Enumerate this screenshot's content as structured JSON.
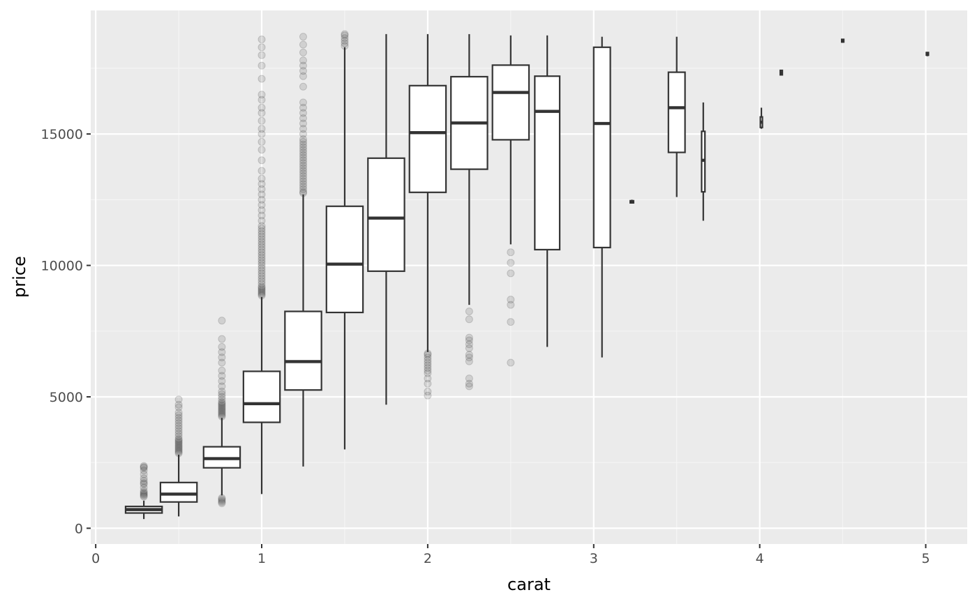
{
  "chart_data": {
    "type": "boxplot",
    "title": "",
    "xlabel": "carat",
    "ylabel": "price",
    "xlim": [
      -0.03,
      5.25
    ],
    "ylim": [
      -600,
      19700
    ],
    "x_ticks": [
      0,
      1,
      2,
      3,
      4,
      5
    ],
    "x_tick_labels": [
      "0",
      "1",
      "2",
      "3",
      "4",
      "5"
    ],
    "y_ticks": [
      0,
      5000,
      10000,
      15000
    ],
    "y_tick_labels": [
      "0",
      "5000",
      "10000",
      "15000"
    ],
    "grid": true,
    "colors": {
      "panel_background": "#ebebeb",
      "grid_major": "#ffffff",
      "grid_minor": "#f5f5f5",
      "box_outline": "#333333",
      "box_fill": "#ffffff",
      "outlier": "#333333"
    },
    "boxes": [
      {
        "x": 0.29,
        "width": 0.22,
        "lower": 350,
        "q1": 580,
        "median": 710,
        "q3": 830,
        "upper": 1050,
        "outliers": [
          1200,
          1240,
          1280,
          1320,
          1360,
          1420,
          1550,
          1680,
          1720,
          1800,
          1900,
          2050,
          2200,
          2300,
          2330,
          2370
        ]
      },
      {
        "x": 0.5,
        "width": 0.22,
        "lower": 450,
        "q1": 1000,
        "median": 1300,
        "q3": 1740,
        "upper": 2800,
        "outliers": [
          2850,
          2900,
          2950,
          3000,
          3050,
          3100,
          3150,
          3200,
          3250,
          3300,
          3350,
          3400,
          3500,
          3600,
          3700,
          3800,
          3900,
          4000,
          4100,
          4200,
          4300,
          4400,
          4600,
          4700,
          4900
        ]
      },
      {
        "x": 0.76,
        "width": 0.22,
        "lower": 1250,
        "q1": 2300,
        "median": 2650,
        "q3": 3100,
        "upper": 4200,
        "outliers": [
          950,
          1000,
          1050,
          1100,
          1150,
          4250,
          4300,
          4350,
          4400,
          4450,
          4500,
          4550,
          4600,
          4650,
          4700,
          4750,
          4800,
          4900,
          5000,
          5100,
          5200,
          5400,
          5600,
          5800,
          6000,
          6300,
          6500,
          6700,
          6900,
          7200,
          7900
        ]
      },
      {
        "x": 1.0,
        "width": 0.22,
        "lower": 1300,
        "q1": 4030,
        "median": 4740,
        "q3": 5970,
        "upper": 8800,
        "outliers": [
          8850,
          8900,
          8950,
          9000,
          9050,
          9100,
          9150,
          9200,
          9300,
          9400,
          9500,
          9600,
          9700,
          9800,
          9900,
          10000,
          10100,
          10200,
          10300,
          10400,
          10500,
          10600,
          10700,
          10800,
          10900,
          11000,
          11100,
          11200,
          11300,
          11400,
          11500,
          11700,
          11900,
          12100,
          12300,
          12500,
          12700,
          12900,
          13100,
          13300,
          13600,
          14000,
          14400,
          14700,
          15000,
          15200,
          15500,
          15800,
          16000,
          16300,
          16500,
          17100,
          17600,
          18000,
          18300,
          18600
        ]
      },
      {
        "x": 1.25,
        "width": 0.22,
        "lower": 2350,
        "q1": 5260,
        "median": 6340,
        "q3": 8250,
        "upper": 12700,
        "outliers": [
          12750,
          12800,
          12900,
          13000,
          13100,
          13200,
          13300,
          13400,
          13500,
          13600,
          13700,
          13800,
          13900,
          14000,
          14100,
          14200,
          14300,
          14400,
          14500,
          14600,
          14700,
          14800,
          15000,
          15200,
          15400,
          15600,
          15800,
          16000,
          16200,
          16800,
          17200,
          17400,
          17600,
          17800,
          18100,
          18400,
          18700
        ]
      },
      {
        "x": 1.5,
        "width": 0.22,
        "lower": 3000,
        "q1": 8210,
        "median": 10050,
        "q3": 12250,
        "upper": 18300,
        "outliers": [
          18350,
          18450,
          18550,
          18650,
          18750,
          18800
        ]
      },
      {
        "x": 1.75,
        "width": 0.22,
        "lower": 4700,
        "q1": 9780,
        "median": 11800,
        "q3": 14080,
        "upper": 18800,
        "outliers": []
      },
      {
        "x": 2.0,
        "width": 0.22,
        "lower": 6700,
        "q1": 12780,
        "median": 15050,
        "q3": 16840,
        "upper": 18800,
        "outliers": [
          5050,
          5200,
          5500,
          5700,
          5900,
          6000,
          6100,
          6200,
          6300,
          6400,
          6500,
          6600,
          6650
        ]
      },
      {
        "x": 2.25,
        "width": 0.22,
        "lower": 8500,
        "q1": 13660,
        "median": 15420,
        "q3": 17180,
        "upper": 18800,
        "outliers": [
          5400,
          5500,
          5700,
          6350,
          6500,
          6600,
          6850,
          7000,
          7150,
          7250,
          7950,
          8250
        ]
      },
      {
        "x": 2.5,
        "width": 0.22,
        "lower": 10800,
        "q1": 14780,
        "median": 16580,
        "q3": 17620,
        "upper": 18750,
        "outliers": [
          6300,
          7850,
          8500,
          8700,
          9700,
          10100,
          10500
        ]
      },
      {
        "x": 2.72,
        "width": 0.15,
        "lower": 6900,
        "q1": 10600,
        "median": 15860,
        "q3": 17200,
        "upper": 18750,
        "outliers": []
      },
      {
        "x": 3.05,
        "width": 0.1,
        "lower": 6500,
        "q1": 10680,
        "median": 15400,
        "q3": 18300,
        "upper": 18700,
        "outliers": []
      },
      {
        "x": 3.23,
        "width": 0.02,
        "lower": 12350,
        "q1": 12380,
        "median": 12420,
        "q3": 12460,
        "upper": 12500,
        "outliers": []
      },
      {
        "x": 3.5,
        "width": 0.1,
        "lower": 12600,
        "q1": 14300,
        "median": 16000,
        "q3": 17350,
        "upper": 18700,
        "outliers": []
      },
      {
        "x": 3.66,
        "width": 0.02,
        "lower": 11700,
        "q1": 12800,
        "median": 14000,
        "q3": 15100,
        "upper": 16200,
        "outliers": []
      },
      {
        "x": 4.01,
        "width": 0.01,
        "lower": 15200,
        "q1": 15250,
        "median": 15450,
        "q3": 15650,
        "upper": 16000,
        "outliers": []
      },
      {
        "x": 4.13,
        "width": 0.005,
        "lower": 17250,
        "q1": 17250,
        "median": 17330,
        "q3": 17420,
        "upper": 17420,
        "outliers": []
      },
      {
        "x": 4.5,
        "width": 0.005,
        "lower": 18500,
        "q1": 18500,
        "median": 18531,
        "q3": 18600,
        "upper": 18600,
        "outliers": []
      },
      {
        "x": 5.01,
        "width": 0.005,
        "lower": 18000,
        "q1": 18000,
        "median": 18018,
        "q3": 18100,
        "upper": 18100,
        "outliers": []
      }
    ]
  }
}
